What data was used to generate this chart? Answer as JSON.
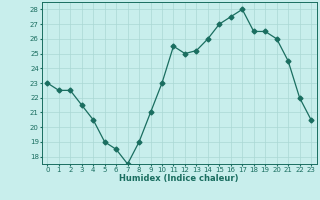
{
  "x": [
    0,
    1,
    2,
    3,
    4,
    5,
    6,
    7,
    8,
    9,
    10,
    11,
    12,
    13,
    14,
    15,
    16,
    17,
    18,
    19,
    20,
    21,
    22,
    23
  ],
  "y": [
    23.0,
    22.5,
    22.5,
    21.5,
    20.5,
    19.0,
    18.5,
    17.5,
    19.0,
    21.0,
    23.0,
    25.5,
    25.0,
    25.2,
    26.0,
    27.0,
    27.5,
    28.0,
    26.5,
    26.5,
    26.0,
    24.5,
    22.0,
    20.5
  ],
  "line_color": "#1a6e60",
  "marker": "D",
  "marker_size": 2.5,
  "bg_color": "#c8eeec",
  "grid_color": "#aad8d4",
  "xlabel": "Humidex (Indice chaleur)",
  "xlim": [
    -0.5,
    23.5
  ],
  "ylim": [
    17.5,
    28.5
  ],
  "yticks": [
    18,
    19,
    20,
    21,
    22,
    23,
    24,
    25,
    26,
    27,
    28
  ],
  "xticks": [
    0,
    1,
    2,
    3,
    4,
    5,
    6,
    7,
    8,
    9,
    10,
    11,
    12,
    13,
    14,
    15,
    16,
    17,
    18,
    19,
    20,
    21,
    22,
    23
  ],
  "tick_fontsize": 5.0,
  "xlabel_fontsize": 6.0
}
